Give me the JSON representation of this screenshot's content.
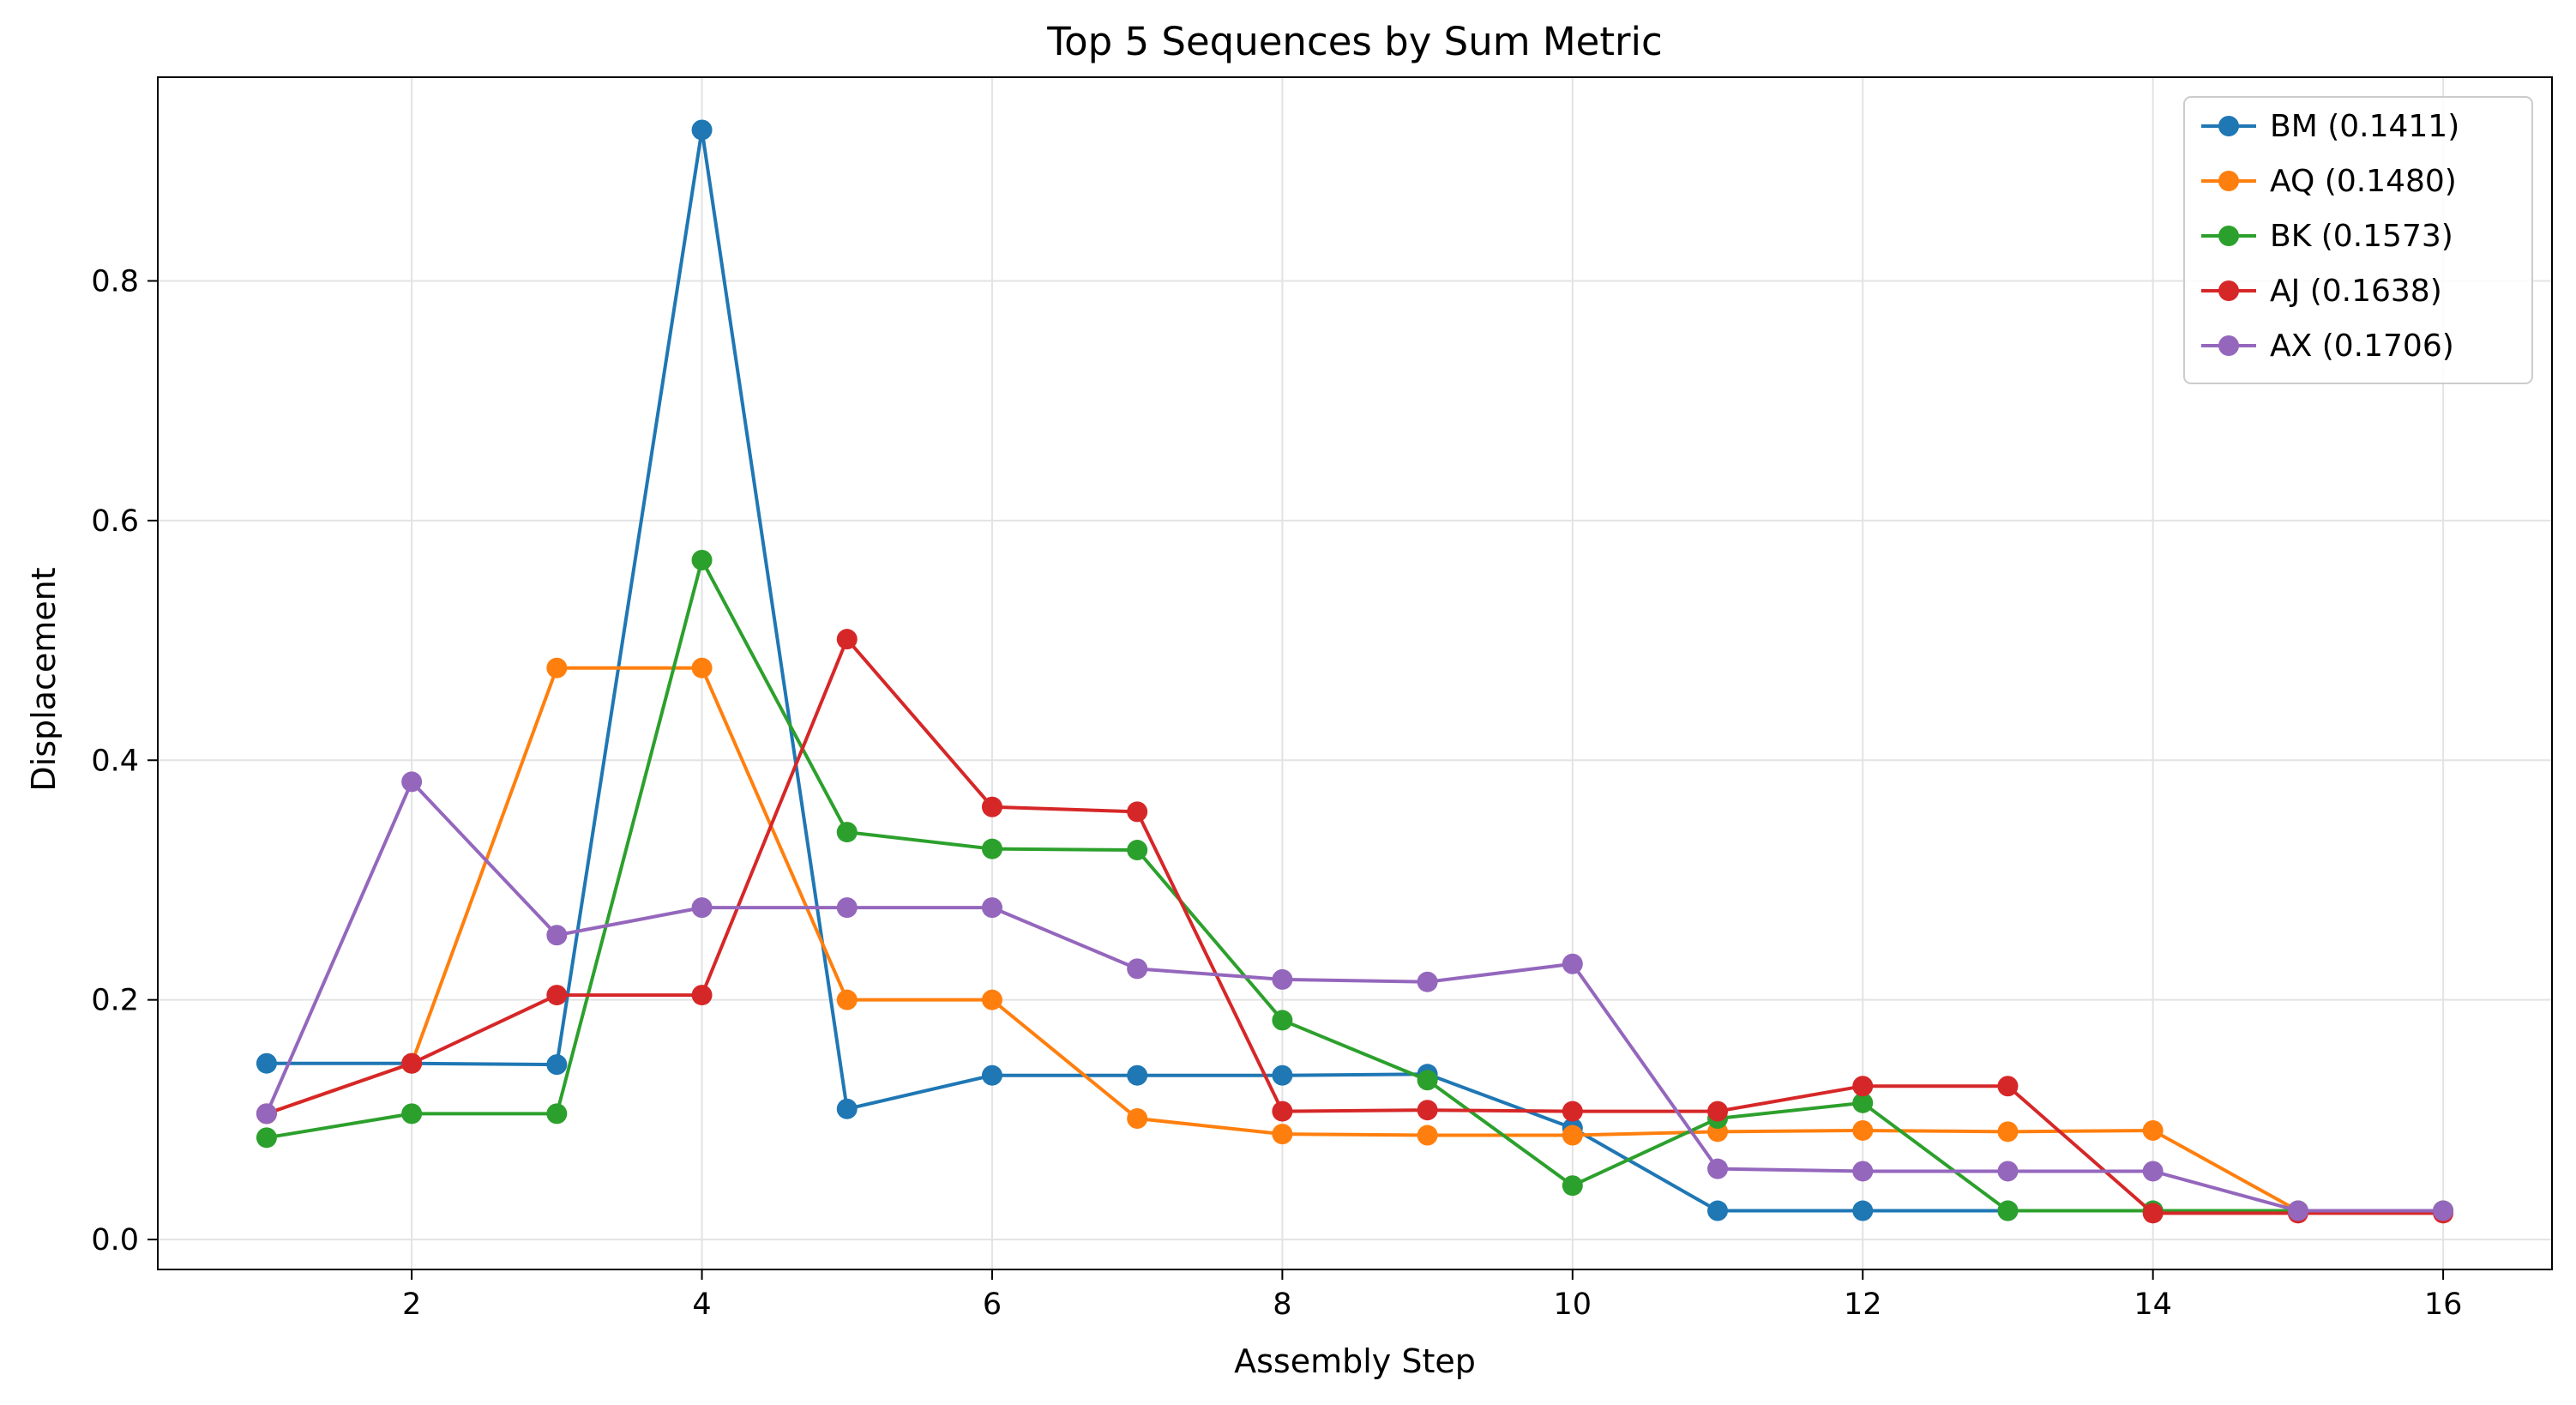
{
  "chart_data": {
    "type": "line",
    "title": "Top 5 Sequences by Sum Metric",
    "xlabel": "Assembly Step",
    "ylabel": "Displacement",
    "x": [
      1,
      2,
      3,
      4,
      5,
      6,
      7,
      8,
      9,
      10,
      11,
      12,
      13,
      14,
      15,
      16
    ],
    "xlim": [
      0.25,
      16.75
    ],
    "ylim": [
      -0.025,
      0.97
    ],
    "xticks": [
      "2",
      "4",
      "6",
      "8",
      "10",
      "12",
      "14",
      "16"
    ],
    "yticks": [
      "0.0",
      "0.2",
      "0.4",
      "0.6",
      "0.8"
    ],
    "grid": true,
    "legend_position": "top-right",
    "series": [
      {
        "name": "BM (0.1411)",
        "color": "#1f77b4",
        "values": [
          0.147,
          0.147,
          0.146,
          0.926,
          0.109,
          0.137,
          0.137,
          0.137,
          0.138,
          0.093,
          0.024,
          0.024,
          0.024,
          0.024,
          0.024,
          0.024
        ]
      },
      {
        "name": "AQ (0.1480)",
        "color": "#ff7f0e",
        "values": [
          0.105,
          0.147,
          0.477,
          0.477,
          0.2,
          0.2,
          0.101,
          0.088,
          0.087,
          0.087,
          0.09,
          0.091,
          0.09,
          0.091,
          0.024,
          0.024
        ]
      },
      {
        "name": "BK (0.1573)",
        "color": "#2ca02c",
        "values": [
          0.085,
          0.105,
          0.105,
          0.567,
          0.34,
          0.326,
          0.325,
          0.183,
          0.133,
          0.045,
          0.101,
          0.114,
          0.024,
          0.024,
          0.024,
          0.024
        ]
      },
      {
        "name": "AJ (0.1638)",
        "color": "#d62728",
        "values": [
          0.105,
          0.147,
          0.204,
          0.204,
          0.501,
          0.361,
          0.357,
          0.107,
          0.108,
          0.107,
          0.107,
          0.128,
          0.128,
          0.022,
          0.022,
          0.022
        ]
      },
      {
        "name": "AX (0.1706)",
        "color": "#9467bd",
        "values": [
          0.105,
          0.382,
          0.254,
          0.277,
          0.277,
          0.277,
          0.226,
          0.217,
          0.215,
          0.23,
          0.059,
          0.057,
          0.057,
          0.057,
          0.024,
          0.024
        ]
      }
    ]
  }
}
